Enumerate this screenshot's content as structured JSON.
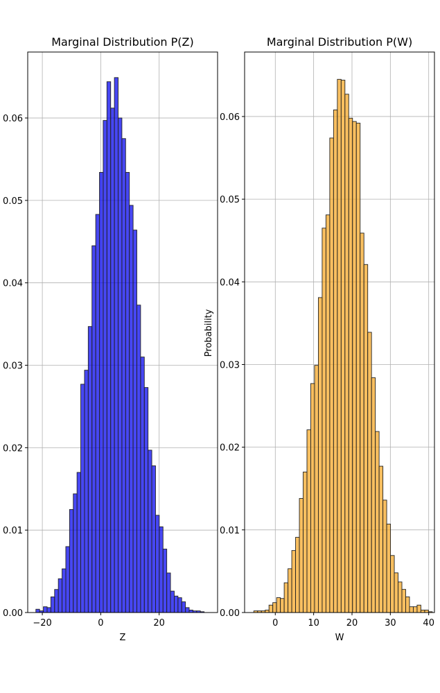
{
  "chart_data": [
    {
      "type": "bar",
      "title": "Marginal Distribution P(Z)",
      "xlabel": "Z",
      "ylabel": "",
      "xlim": [
        -25,
        40
      ],
      "ylim": [
        0,
        0.068
      ],
      "xticks": [
        -20,
        0,
        20
      ],
      "yticks": [
        0.0,
        0.01,
        0.02,
        0.03,
        0.04,
        0.05,
        0.06
      ],
      "ytick_labels": [
        "0.00",
        "0.01",
        "0.02",
        "0.03",
        "0.04",
        "0.05",
        "0.06"
      ],
      "grid": true,
      "color": "#0000ee",
      "edge_color": "#222222",
      "bin_start": -22.2,
      "bin_width": 1.28,
      "values": [
        0.0004,
        0.0002,
        0.0007,
        0.0006,
        0.0019,
        0.0028,
        0.0041,
        0.0053,
        0.008,
        0.0125,
        0.0144,
        0.017,
        0.0277,
        0.0294,
        0.0347,
        0.0445,
        0.0483,
        0.0534,
        0.0597,
        0.0644,
        0.0612,
        0.0649,
        0.06,
        0.0575,
        0.0534,
        0.0494,
        0.0464,
        0.0373,
        0.031,
        0.0273,
        0.0197,
        0.0178,
        0.0118,
        0.0104,
        0.0077,
        0.0048,
        0.0026,
        0.002,
        0.0018,
        0.0013,
        0.0006,
        0.0003,
        0.0002,
        0.0002,
        0.0001
      ]
    },
    {
      "type": "bar",
      "title": "Marginal Distribution P(W)",
      "xlabel": "W",
      "ylabel": "Probability",
      "xlim": [
        -8,
        41.5
      ],
      "ylim": [
        0,
        0.0678
      ],
      "xticks": [
        0,
        10,
        20,
        30,
        40
      ],
      "yticks": [
        0.0,
        0.01,
        0.02,
        0.03,
        0.04,
        0.05,
        0.06
      ],
      "ytick_labels": [
        "0.00",
        "0.01",
        "0.02",
        "0.03",
        "0.04",
        "0.05",
        "0.06"
      ],
      "grid": true,
      "color": "#f5a623",
      "edge_color": "#222222",
      "bin_start": -5.6,
      "bin_width": 0.99,
      "values": [
        0.0002,
        0.0002,
        0.0002,
        0.0003,
        0.0009,
        0.0012,
        0.0018,
        0.0017,
        0.0036,
        0.0053,
        0.0075,
        0.0091,
        0.0138,
        0.017,
        0.0221,
        0.0277,
        0.0299,
        0.0381,
        0.0465,
        0.0481,
        0.0574,
        0.0608,
        0.0645,
        0.0644,
        0.0627,
        0.0598,
        0.0594,
        0.0592,
        0.0459,
        0.0421,
        0.0339,
        0.0284,
        0.0219,
        0.0177,
        0.0136,
        0.0107,
        0.0069,
        0.0048,
        0.0037,
        0.0028,
        0.0019,
        0.0007,
        0.0007,
        0.0009,
        0.0003,
        0.0003,
        0.0001
      ]
    }
  ]
}
